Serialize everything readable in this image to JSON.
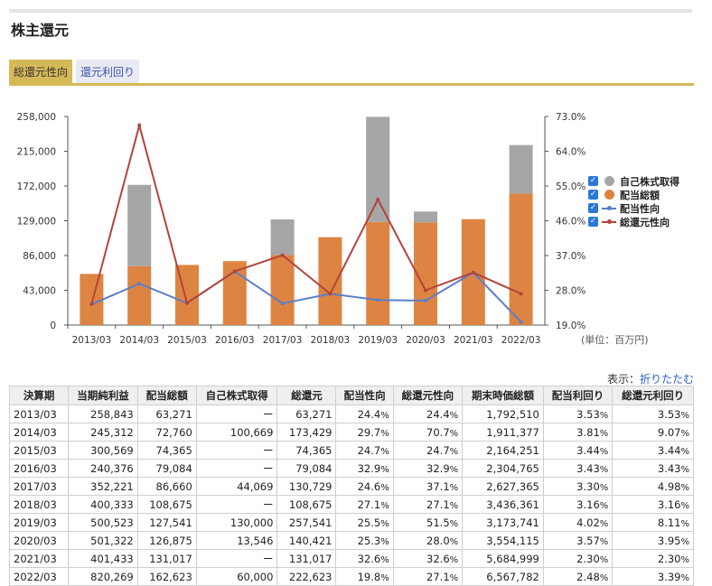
{
  "page": {
    "title": "株主還元"
  },
  "tabs": [
    {
      "label": "総還元性向",
      "active": true
    },
    {
      "label": "還元利回り",
      "active": false
    }
  ],
  "colors": {
    "buyback": "#a6a6a6",
    "dividend": "#dd8442",
    "payout": "#5b7ec9",
    "total_payout": "#b3443b",
    "accent": "#d6b957"
  },
  "chart_data": {
    "type": "bar",
    "categories": [
      "2013/03",
      "2014/03",
      "2015/03",
      "2016/03",
      "2017/03",
      "2018/03",
      "2019/03",
      "2020/03",
      "2021/03",
      "2022/03"
    ],
    "y_left": {
      "ticks": [
        "258,000",
        "215,000",
        "172,000",
        "129,000",
        "86,000",
        "43,000",
        "0"
      ],
      "ylim": [
        0,
        258000
      ]
    },
    "y_right": {
      "ticks": [
        "73.0%",
        "64.0%",
        "55.0%",
        "46.0%",
        "37.0%",
        "28.0%",
        "19.0%"
      ],
      "ylim": [
        19,
        73
      ]
    },
    "series": [
      {
        "name": "自己株式取得",
        "kind": "bar-stack",
        "values": [
          0,
          100669,
          0,
          0,
          44069,
          0,
          130000,
          13546,
          0,
          60000
        ]
      },
      {
        "name": "配当総額",
        "kind": "bar-base",
        "values": [
          63271,
          72760,
          74365,
          79084,
          86660,
          108675,
          127541,
          126875,
          131017,
          162623
        ]
      },
      {
        "name": "配当性向",
        "kind": "line",
        "axis": "right",
        "values": [
          24.4,
          29.7,
          24.7,
          32.9,
          24.6,
          27.1,
          25.5,
          25.3,
          32.6,
          19.8
        ]
      },
      {
        "name": "総還元性向",
        "kind": "line",
        "axis": "right",
        "values": [
          24.4,
          70.7,
          24.7,
          32.9,
          37.1,
          27.1,
          51.5,
          28.0,
          32.6,
          27.1
        ]
      }
    ],
    "legend_position": "right",
    "unit_label": "(単位：百万円)"
  },
  "display": {
    "label": "表示：",
    "link": "折りたたむ"
  },
  "table": {
    "headers": [
      "決算期",
      "当期純利益",
      "配当総額",
      "自己株式取得",
      "総還元",
      "配当性向",
      "総還元性向",
      "期末時価総額",
      "配当利回り",
      "総還元利回り"
    ],
    "rows": [
      [
        "2013/03",
        "258,843",
        "63,271",
        "ー",
        "63,271",
        "24.4",
        "24.4",
        "1,792,510",
        "3.53",
        "3.53"
      ],
      [
        "2014/03",
        "245,312",
        "72,760",
        "100,669",
        "173,429",
        "29.7",
        "70.7",
        "1,911,377",
        "3.81",
        "9.07"
      ],
      [
        "2015/03",
        "300,569",
        "74,365",
        "ー",
        "74,365",
        "24.7",
        "24.7",
        "2,164,251",
        "3.44",
        "3.44"
      ],
      [
        "2016/03",
        "240,376",
        "79,084",
        "ー",
        "79,084",
        "32.9",
        "32.9",
        "2,304,765",
        "3.43",
        "3.43"
      ],
      [
        "2017/03",
        "352,221",
        "86,660",
        "44,069",
        "130,729",
        "24.6",
        "37.1",
        "2,627,365",
        "3.30",
        "4.98"
      ],
      [
        "2018/03",
        "400,333",
        "108,675",
        "ー",
        "108,675",
        "27.1",
        "27.1",
        "3,436,361",
        "3.16",
        "3.16"
      ],
      [
        "2019/03",
        "500,523",
        "127,541",
        "130,000",
        "257,541",
        "25.5",
        "51.5",
        "3,173,741",
        "4.02",
        "8.11"
      ],
      [
        "2020/03",
        "501,322",
        "126,875",
        "13,546",
        "140,421",
        "25.3",
        "28.0",
        "3,554,115",
        "3.57",
        "3.95"
      ],
      [
        "2021/03",
        "401,433",
        "131,017",
        "ー",
        "131,017",
        "32.6",
        "32.6",
        "5,684,999",
        "2.30",
        "2.30"
      ],
      [
        "2022/03",
        "820,269",
        "162,623",
        "60,000",
        "222,623",
        "19.8",
        "27.1",
        "6,567,782",
        "2.48",
        "3.39"
      ]
    ],
    "pct_unit": "%"
  }
}
